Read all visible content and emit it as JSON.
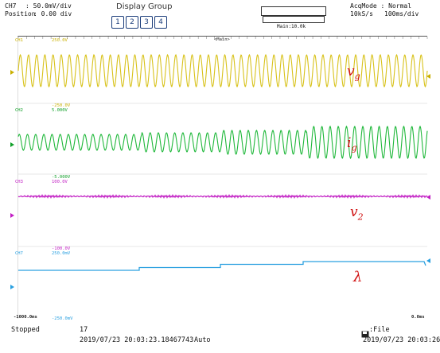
{
  "header": {
    "channel_line1_key": "CH7",
    "channel_line1_val": ": 50.0mV/div",
    "channel_line2_key": "Position",
    "channel_line2_val": ": 0.00 div",
    "display_group_title": "Display Group",
    "groups": [
      "1",
      "2",
      "3",
      "4"
    ],
    "main_label": "Main:10.0k",
    "acq_mode": "AcqMode : Normal",
    "sample_rate": "10kS/s",
    "time_div": "100ms/div"
  },
  "screen": {
    "main_tag": "<Main>",
    "ch1_label": "CH1",
    "ch1_top": "250.0V",
    "ch1_bottom": "-250.0V",
    "ch2_label": "CH2",
    "ch2_top": "5.000V",
    "ch2_bottom": "-5.000V",
    "ch3_label": "CH3",
    "ch3_top": "100.0V",
    "ch3_bottom": "-100.0V",
    "ch7_label": "CH7",
    "ch7_top": "250.0mV",
    "ch7_bottom": "-250.0mV",
    "time_left": "-1000.0ms",
    "time_right": "0.0ms"
  },
  "signals": {
    "vg": {
      "symbol": "v",
      "sub": "g",
      "color": "#d8c21a"
    },
    "ig": {
      "symbol": "i",
      "sub": "g",
      "color": "#1fb83a"
    },
    "v2": {
      "symbol": "v",
      "sub": "2",
      "color": "#c21fc4"
    },
    "lambda": {
      "symbol": "λ",
      "color": "#2aa0e0"
    }
  },
  "footer": {
    "status": "Stopped",
    "count": "17",
    "trigger_time": "2019/07/23 20:03:23.18467743",
    "trigger_mode": "Auto",
    "file_label": ":File",
    "file_time": "2019/07/23 20:03:26"
  }
}
